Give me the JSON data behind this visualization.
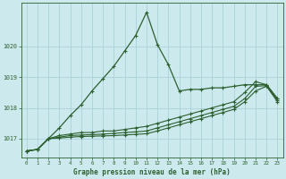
{
  "xlabel": "Graphe pression niveau de la mer (hPa)",
  "background_color": "#cce9ed",
  "grid_color": "#aad0d8",
  "line_color": "#2d6030",
  "xlim": [
    -0.5,
    23.5
  ],
  "ylim": [
    1016.4,
    1021.4
  ],
  "yticks": [
    1017,
    1018,
    1019,
    1020
  ],
  "xticks": [
    0,
    1,
    2,
    3,
    4,
    5,
    6,
    7,
    8,
    9,
    10,
    11,
    12,
    13,
    14,
    15,
    16,
    17,
    18,
    19,
    20,
    21,
    22,
    23
  ],
  "series": [
    {
      "x": [
        0,
        1,
        2,
        3,
        4,
        5,
        6,
        7,
        8,
        9,
        10,
        11,
        12,
        13,
        14,
        15,
        16,
        17,
        18,
        19,
        20,
        21,
        22,
        23
      ],
      "y": [
        1016.6,
        1016.65,
        1017.0,
        1017.35,
        1017.75,
        1018.1,
        1018.55,
        1018.95,
        1019.35,
        1019.85,
        1020.35,
        1021.1,
        1020.05,
        1019.4,
        1018.55,
        1018.6,
        1018.6,
        1018.65,
        1018.65,
        1018.7,
        1018.75,
        1018.75,
        1018.75,
        1018.3
      ]
    },
    {
      "x": [
        0,
        1,
        2,
        3,
        4,
        5,
        6,
        7,
        8,
        9,
        10,
        11,
        12,
        13,
        14,
        15,
        16,
        17,
        18,
        19,
        20,
        21,
        22,
        23
      ],
      "y": [
        1016.6,
        1016.65,
        1017.0,
        1017.1,
        1017.15,
        1017.2,
        1017.2,
        1017.25,
        1017.25,
        1017.3,
        1017.35,
        1017.4,
        1017.5,
        1017.6,
        1017.7,
        1017.8,
        1017.9,
        1018.0,
        1018.1,
        1018.2,
        1018.5,
        1018.85,
        1018.75,
        1018.3
      ]
    },
    {
      "x": [
        0,
        1,
        2,
        3,
        4,
        5,
        6,
        7,
        8,
        9,
        10,
        11,
        12,
        13,
        14,
        15,
        16,
        17,
        18,
        19,
        20,
        21,
        22,
        23
      ],
      "y": [
        1016.6,
        1016.65,
        1017.0,
        1017.05,
        1017.1,
        1017.12,
        1017.13,
        1017.15,
        1017.17,
        1017.2,
        1017.22,
        1017.25,
        1017.35,
        1017.45,
        1017.55,
        1017.65,
        1017.75,
        1017.85,
        1017.95,
        1018.05,
        1018.3,
        1018.7,
        1018.72,
        1018.25
      ]
    },
    {
      "x": [
        0,
        1,
        2,
        3,
        4,
        5,
        6,
        7,
        8,
        9,
        10,
        11,
        12,
        13,
        14,
        15,
        16,
        17,
        18,
        19,
        20,
        21,
        22,
        23
      ],
      "y": [
        1016.6,
        1016.65,
        1017.0,
        1017.02,
        1017.05,
        1017.07,
        1017.08,
        1017.09,
        1017.1,
        1017.12,
        1017.14,
        1017.16,
        1017.25,
        1017.35,
        1017.45,
        1017.55,
        1017.65,
        1017.75,
        1017.85,
        1017.95,
        1018.2,
        1018.55,
        1018.7,
        1018.2
      ]
    }
  ]
}
